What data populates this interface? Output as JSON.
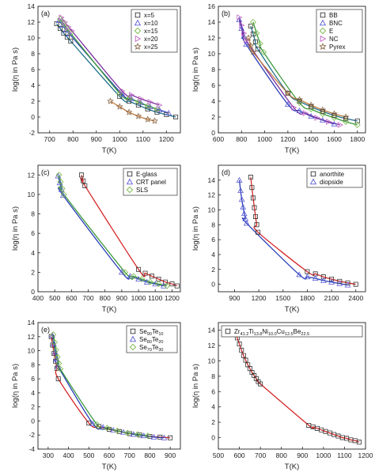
{
  "chart_data": [
    {
      "panel": "(a)",
      "type": "scatter",
      "xlabel": "T(K)",
      "ylabel": "log(η in Pa s)",
      "xlim": [
        650,
        1260
      ],
      "ylim": [
        -2,
        14
      ],
      "xticks": [
        700,
        800,
        900,
        1000,
        1100,
        1200
      ],
      "yticks": [
        -2,
        0,
        2,
        4,
        6,
        8,
        10,
        12,
        14
      ],
      "legend_position": "top-right",
      "series": [
        {
          "name": "x=5",
          "marker": "square",
          "color": "#333333",
          "curve_color": "#1f6f8b",
          "x": [
            730,
            745,
            760,
            775,
            790,
            1000,
            1040,
            1080,
            1120,
            1160,
            1200,
            1240
          ],
          "y": [
            11.8,
            11.2,
            10.6,
            10.1,
            9.6,
            2.6,
            2.0,
            1.5,
            1.0,
            0.6,
            0.3,
            0.0
          ]
        },
        {
          "name": "x=10",
          "marker": "triangle",
          "color": "#5b5bd6",
          "curve_color": "#2b3fb8",
          "x": [
            740,
            755,
            770,
            785,
            1010,
            1050,
            1090,
            1130,
            1170,
            1210
          ],
          "y": [
            12.2,
            11.6,
            11.0,
            10.5,
            2.9,
            2.3,
            1.8,
            1.3,
            0.9,
            0.5
          ]
        },
        {
          "name": "x=15",
          "marker": "diamond",
          "color": "#7ab648",
          "curve_color": "#3c9a3c",
          "x": [
            745,
            760,
            775,
            790,
            1000,
            1040,
            1080,
            1120,
            1160
          ],
          "y": [
            12.4,
            11.8,
            11.2,
            10.6,
            3.0,
            2.4,
            1.9,
            1.4,
            1.0
          ]
        },
        {
          "name": "x=20",
          "marker": "triangle-right",
          "color": "#c060c0",
          "curve_color": "#7b2fa0",
          "x": [
            750,
            765,
            780,
            795,
            1010,
            1050,
            1090,
            1130,
            1170
          ],
          "y": [
            12.6,
            12.0,
            11.4,
            10.9,
            3.3,
            2.8,
            2.3,
            1.9,
            1.5
          ]
        },
        {
          "name": "x=25",
          "marker": "star",
          "color": "#8b6a4a",
          "curve_color": "#c07a3a",
          "x": [
            960,
            1000,
            1040,
            1080,
            1120,
            1150
          ],
          "y": [
            2.0,
            1.3,
            0.6,
            0.1,
            -0.3,
            -0.5
          ]
        }
      ]
    },
    {
      "panel": "(b)",
      "type": "scatter",
      "xlabel": "T(K)",
      "ylabel": "log(η in Pa s)",
      "xlim": [
        600,
        1870
      ],
      "ylim": [
        0,
        16
      ],
      "xticks": [
        600,
        800,
        1000,
        1200,
        1400,
        1600,
        1800
      ],
      "yticks": [
        0,
        2,
        4,
        6,
        8,
        10,
        12,
        14,
        16
      ],
      "legend_position": "top-right",
      "series": [
        {
          "name": "BB",
          "marker": "square",
          "color": "#333333",
          "curve_color": "#1f6f8b",
          "x": [
            880,
            900,
            920,
            940,
            1200,
            1300,
            1400,
            1500,
            1600,
            1700,
            1800
          ],
          "y": [
            13.5,
            12.5,
            11.5,
            10.6,
            5.0,
            4.0,
            3.3,
            2.7,
            2.2,
            1.8,
            1.5
          ]
        },
        {
          "name": "BNC",
          "marker": "triangle",
          "color": "#5b5bd6",
          "curve_color": "#2b3fb8",
          "x": [
            780,
            800,
            820,
            840,
            1200,
            1300,
            1400,
            1500,
            1600
          ],
          "y": [
            14.3,
            13.2,
            12.2,
            11.2,
            3.6,
            2.8,
            2.1,
            1.6,
            1.1
          ]
        },
        {
          "name": "E",
          "marker": "diamond",
          "color": "#7ab648",
          "curve_color": "#3c9a3c",
          "x": [
            900,
            930,
            960,
            990,
            1300,
            1400,
            1500,
            1600,
            1700,
            1800
          ],
          "y": [
            14.0,
            12.6,
            11.3,
            10.2,
            3.8,
            3.0,
            2.4,
            1.9,
            1.4,
            1.0
          ]
        },
        {
          "name": "NC",
          "marker": "triangle-right",
          "color": "#c060c0",
          "curve_color": "#7b2fa0",
          "x": [
            780,
            800,
            820,
            840,
            1250,
            1350,
            1450,
            1550,
            1650
          ],
          "y": [
            14.6,
            13.6,
            12.6,
            11.7,
            3.2,
            2.5,
            1.9,
            1.4,
            1.0
          ]
        },
        {
          "name": "Pyrex",
          "marker": "star",
          "color": "#8b6a4a",
          "curve_color": "#c07a3a",
          "x": [
            860,
            880,
            900,
            1200,
            1300,
            1400,
            1500,
            1600,
            1700
          ],
          "y": [
            12.0,
            11.0,
            10.2,
            5.0,
            4.2,
            3.5,
            2.9,
            2.4,
            2.0
          ]
        }
      ]
    },
    {
      "panel": "(c)",
      "type": "scatter",
      "xlabel": "T(K)",
      "ylabel": "log(η in Pa s)",
      "xlim": [
        400,
        1250
      ],
      "ylim": [
        0,
        13
      ],
      "xticks": [
        400,
        500,
        600,
        700,
        800,
        900,
        1000,
        1100,
        1200
      ],
      "yticks": [
        0,
        2,
        4,
        6,
        8,
        10,
        12
      ],
      "legend_position": "top-right",
      "series": [
        {
          "name": "E-glass",
          "marker": "square",
          "color": "#333333",
          "curve_color": "#d62728",
          "x": [
            660,
            670,
            680,
            1000,
            1040,
            1080,
            1120,
            1160,
            1200,
            1230
          ],
          "y": [
            12.0,
            11.4,
            10.9,
            2.3,
            1.9,
            1.6,
            1.3,
            1.0,
            0.8,
            0.6
          ]
        },
        {
          "name": "CRT panel",
          "marker": "triangle",
          "color": "#5b5bd6",
          "curve_color": "#2b3fb8",
          "x": [
            520,
            530,
            540,
            550,
            900,
            950,
            1000,
            1050,
            1100,
            1150
          ],
          "y": [
            11.9,
            11.2,
            10.5,
            9.9,
            2.0,
            1.6,
            1.3,
            1.0,
            0.8,
            0.6
          ]
        },
        {
          "name": "SLS",
          "marker": "diamond",
          "color": "#7ab648",
          "curve_color": "#3c9a3c",
          "x": [
            525,
            535,
            545,
            555,
            920,
            970,
            1020,
            1070,
            1120,
            1170
          ],
          "y": [
            12.0,
            11.3,
            10.6,
            10.0,
            2.0,
            1.6,
            1.3,
            1.0,
            0.8,
            0.6
          ]
        }
      ]
    },
    {
      "panel": "(d)",
      "type": "scatter",
      "xlabel": "T(K)",
      "ylabel": "log(η in Pa s)",
      "xlim": [
        700,
        2520
      ],
      "ylim": [
        -1,
        16
      ],
      "xticks": [
        900,
        1200,
        1500,
        1800,
        2100,
        2400
      ],
      "yticks": [
        0,
        2,
        4,
        6,
        8,
        10,
        12,
        14
      ],
      "legend_position": "top-right",
      "series": [
        {
          "name": "anorthite",
          "marker": "square",
          "color": "#333333",
          "curve_color": "#d62728",
          "x": [
            1100,
            1115,
            1130,
            1145,
            1160,
            1175,
            1190,
            1800,
            1900,
            2000,
            2100,
            2200,
            2300,
            2400
          ],
          "y": [
            14.4,
            13.0,
            11.6,
            10.3,
            9.1,
            8.0,
            7.0,
            1.7,
            1.4,
            1.0,
            0.7,
            0.4,
            0.2,
            0.0
          ]
        },
        {
          "name": "diopside",
          "marker": "triangle",
          "color": "#5b5bd6",
          "curve_color": "#2b3fb8",
          "x": [
            960,
            975,
            990,
            1005,
            1020,
            1035,
            1050,
            1700,
            1800,
            1900,
            2000,
            2100,
            2200,
            2300
          ],
          "y": [
            14.0,
            12.6,
            11.4,
            10.4,
            9.5,
            8.8,
            8.2,
            1.3,
            1.0,
            0.8,
            0.5,
            0.3,
            0.1,
            -0.1
          ]
        }
      ]
    },
    {
      "panel": "(e)",
      "type": "scatter",
      "xlabel": "T(K)",
      "ylabel": "log(η in Pa s)",
      "xlim": [
        250,
        950
      ],
      "ylim": [
        -4,
        14
      ],
      "xticks": [
        300,
        400,
        500,
        600,
        700,
        800,
        900
      ],
      "yticks": [
        -4,
        -2,
        0,
        2,
        4,
        6,
        8,
        10,
        12,
        14
      ],
      "legend_position": "top-right",
      "series": [
        {
          "name": "Se90Te10",
          "marker": "square",
          "color": "#333333",
          "curve_color": "#d62728",
          "x": [
            315,
            322,
            329,
            336,
            343,
            350,
            500,
            550,
            600,
            650,
            700,
            750,
            800,
            850,
            900
          ],
          "y": [
            12.0,
            10.8,
            9.6,
            8.5,
            7.5,
            6.0,
            -0.3,
            -0.8,
            -1.2,
            -1.5,
            -1.8,
            -2.0,
            -2.2,
            -2.3,
            -2.4
          ]
        },
        {
          "name": "Se80Te20",
          "marker": "triangle",
          "color": "#5b5bd6",
          "curve_color": "#2b3fb8",
          "x": [
            320,
            327,
            334,
            341,
            348,
            520,
            570,
            620,
            670,
            720,
            770,
            820,
            870
          ],
          "y": [
            12.2,
            11.0,
            9.8,
            8.8,
            7.8,
            -0.4,
            -0.9,
            -1.3,
            -1.6,
            -1.9,
            -2.1,
            -2.3,
            -2.4
          ]
        },
        {
          "name": "Se70Te30",
          "marker": "diamond",
          "color": "#7ab648",
          "curve_color": "#3c9a3c",
          "x": [
            325,
            332,
            339,
            346,
            353,
            360,
            540,
            590,
            640,
            690,
            740,
            790
          ],
          "y": [
            12.3,
            11.2,
            10.1,
            9.1,
            8.2,
            7.4,
            -0.5,
            -1.0,
            -1.4,
            -1.7,
            -1.9,
            -2.1
          ]
        }
      ]
    },
    {
      "panel": "(f)",
      "type": "scatter",
      "xlabel": "T(K)",
      "ylabel": "log(η in Pa s)",
      "xlim": [
        500,
        1200
      ],
      "ylim": [
        -1.5,
        15
      ],
      "xticks": [
        500,
        600,
        700,
        800,
        900,
        1000,
        1100,
        1200
      ],
      "yticks": [
        0,
        2,
        4,
        6,
        8,
        10,
        12,
        14
      ],
      "legend_position": "top-right",
      "series": [
        {
          "name": "Zr41.2Ti13.8Ni10.0Cu12.5Be22.5",
          "marker": "square",
          "color": "#333333",
          "curve_color": "#d62728",
          "x": [
            580,
            590,
            600,
            610,
            620,
            630,
            640,
            650,
            660,
            670,
            680,
            690,
            700,
            930,
            950,
            970,
            990,
            1010,
            1030,
            1050,
            1070,
            1090,
            1110,
            1130,
            1150,
            1170
          ],
          "y": [
            14.0,
            13.0,
            12.2,
            11.4,
            10.7,
            10.1,
            9.5,
            9.0,
            8.5,
            8.1,
            7.7,
            7.3,
            7.0,
            1.6,
            1.4,
            1.2,
            1.0,
            0.8,
            0.6,
            0.4,
            0.2,
            0.0,
            -0.1,
            -0.3,
            -0.4,
            -0.6
          ]
        }
      ]
    }
  ]
}
